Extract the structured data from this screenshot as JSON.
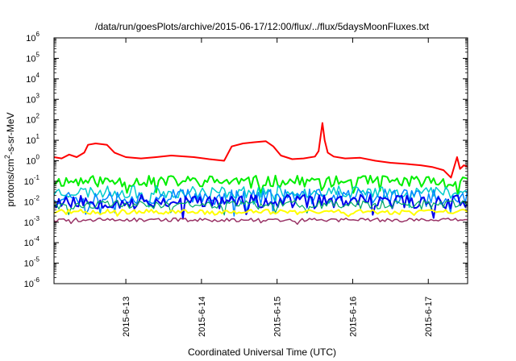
{
  "chart_data": {
    "type": "line",
    "title": "/data/run/goesPlots/archive/2015-06-17/12:00/flux/../flux/5daysMoonFluxes.txt",
    "xlabel": "Coordinated Universal Time (UTC)",
    "ylabel": {
      "prefix": "protons/cm",
      "sup": "2",
      "suffix": "-s-sr-MeV"
    },
    "y_scale": "log",
    "ylim": [
      1e-06,
      1000000.0
    ],
    "xlim_days": [
      12.05,
      17.52
    ],
    "y_ticks": [
      {
        "value": 1e-06,
        "base": "10",
        "exp": "-6"
      },
      {
        "value": 1e-05,
        "base": "10",
        "exp": "-5"
      },
      {
        "value": 0.0001,
        "base": "10",
        "exp": "-4"
      },
      {
        "value": 0.001,
        "base": "10",
        "exp": "-3"
      },
      {
        "value": 0.01,
        "base": "10",
        "exp": "-2"
      },
      {
        "value": 0.1,
        "base": "10",
        "exp": "-1"
      },
      {
        "value": 1.0,
        "base": "10",
        "exp": "0"
      },
      {
        "value": 10.0,
        "base": "10",
        "exp": "1"
      },
      {
        "value": 100.0,
        "base": "10",
        "exp": "2"
      },
      {
        "value": 1000.0,
        "base": "10",
        "exp": "3"
      },
      {
        "value": 10000.0,
        "base": "10",
        "exp": "4"
      },
      {
        "value": 100000.0,
        "base": "10",
        "exp": "5"
      },
      {
        "value": 1000000.0,
        "base": "10",
        "exp": "6"
      }
    ],
    "x_ticks": [
      {
        "day": 13,
        "label": "2015-6-13"
      },
      {
        "day": 14,
        "label": "2015-6-14"
      },
      {
        "day": 15,
        "label": "2015-6-15"
      },
      {
        "day": 16,
        "label": "2015-6-16"
      },
      {
        "day": 17,
        "label": "2015-6-17"
      }
    ],
    "grid": false,
    "legend": "none",
    "series": [
      {
        "color": "#ff0000",
        "width": 2,
        "points": [
          [
            12.05,
            1.5
          ],
          [
            12.15,
            1.3
          ],
          [
            12.25,
            2.0
          ],
          [
            12.35,
            1.5
          ],
          [
            12.45,
            2.5
          ],
          [
            12.5,
            6.0
          ],
          [
            12.6,
            7.0
          ],
          [
            12.75,
            6.0
          ],
          [
            12.85,
            2.5
          ],
          [
            13.0,
            1.5
          ],
          [
            13.2,
            1.3
          ],
          [
            13.4,
            1.5
          ],
          [
            13.6,
            1.8
          ],
          [
            13.9,
            1.5
          ],
          [
            14.1,
            1.2
          ],
          [
            14.3,
            1.0
          ],
          [
            14.4,
            5.0
          ],
          [
            14.55,
            7.0
          ],
          [
            14.7,
            8.0
          ],
          [
            14.85,
            9.0
          ],
          [
            14.95,
            5.0
          ],
          [
            15.05,
            1.8
          ],
          [
            15.2,
            1.2
          ],
          [
            15.35,
            1.3
          ],
          [
            15.5,
            1.6
          ],
          [
            15.55,
            3.0
          ],
          [
            15.6,
            70
          ],
          [
            15.63,
            10
          ],
          [
            15.67,
            2.5
          ],
          [
            15.75,
            1.6
          ],
          [
            15.9,
            1.3
          ],
          [
            16.1,
            1.4
          ],
          [
            16.3,
            1.0
          ],
          [
            16.5,
            0.8
          ],
          [
            16.7,
            0.7
          ],
          [
            16.9,
            0.6
          ],
          [
            17.05,
            0.5
          ],
          [
            17.2,
            0.35
          ],
          [
            17.3,
            0.15
          ],
          [
            17.38,
            1.5
          ],
          [
            17.42,
            0.4
          ],
          [
            17.47,
            0.6
          ],
          [
            17.52,
            0.5
          ]
        ]
      },
      {
        "color": "#00ee00",
        "width": 2,
        "center": 0.1,
        "amp": 0.28,
        "seed": 11
      },
      {
        "color": "#00cccc",
        "width": 1.5,
        "center": 0.03,
        "amp": 0.3,
        "seed": 23
      },
      {
        "color": "#0088ff",
        "width": 1.5,
        "center": 0.018,
        "amp": 0.38,
        "seed": 37
      },
      {
        "color": "#0000ee",
        "width": 2,
        "center": 0.01,
        "amp": 0.34,
        "seed": 53
      },
      {
        "color": "#00aa66",
        "width": 1.2,
        "center": 0.007,
        "amp": 0.22,
        "seed": 61
      },
      {
        "color": "#ffff00",
        "width": 2,
        "center": 0.0032,
        "amp": 0.12,
        "seed": 71
      },
      {
        "color": "#993366",
        "width": 1.5,
        "center": 0.0013,
        "amp": 0.09,
        "seed": 89
      }
    ]
  }
}
